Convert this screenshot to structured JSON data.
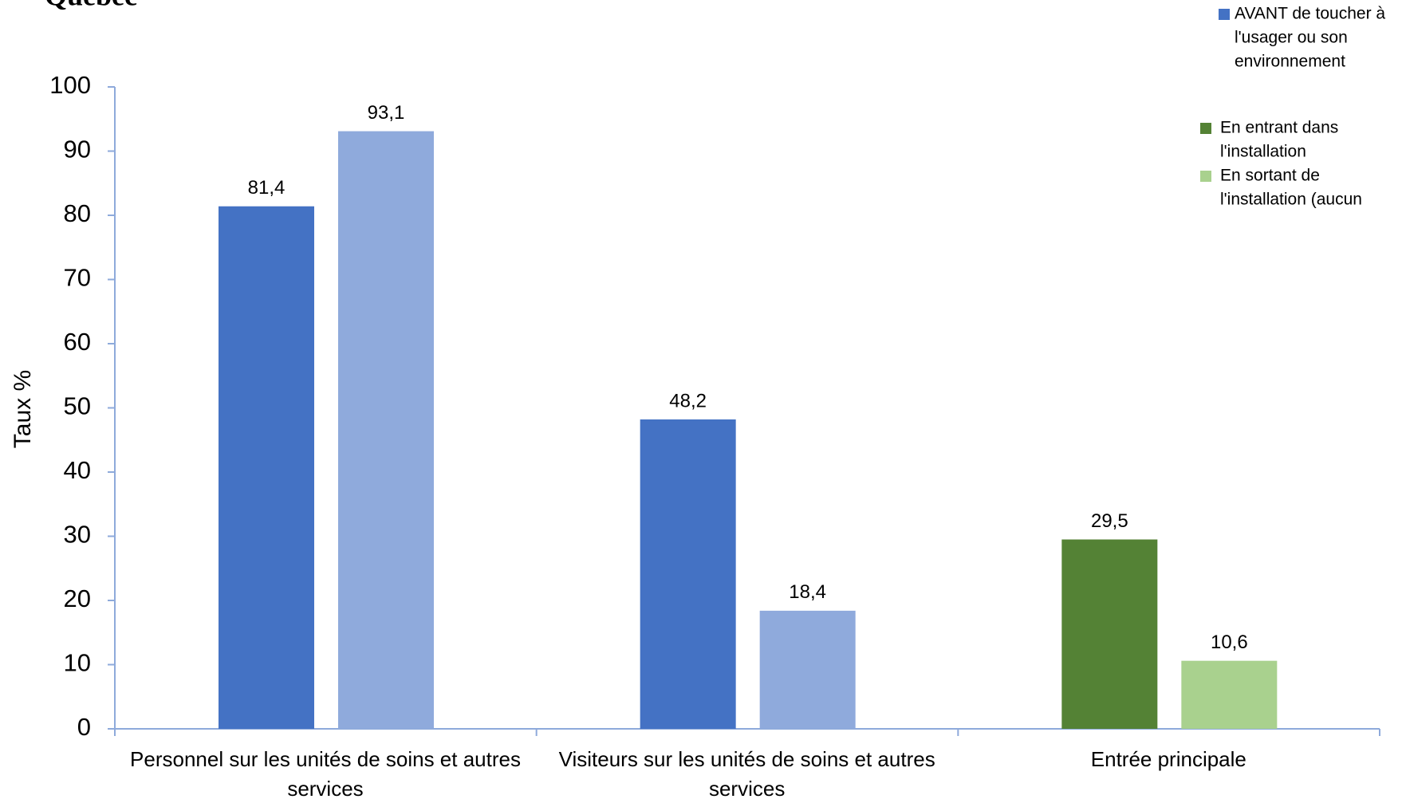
{
  "logo": "Québec",
  "chart_data": {
    "type": "bar",
    "ylabel": "Taux %",
    "categories": [
      "Personnel sur les unités de soins et autres services",
      "Visiteurs sur les unités de soins et autres services",
      "Entrée principale"
    ],
    "series": [
      {
        "colors": [
          "#4472c4",
          "#4472c4",
          "#548235"
        ],
        "values": [
          81.4,
          48.2,
          29.5
        ],
        "value_labels": [
          "81,4",
          "48,2",
          "29,5"
        ]
      },
      {
        "colors": [
          "#8faadc",
          "#8faadc",
          "#a9d18e"
        ],
        "values": [
          93.1,
          18.4,
          10.6
        ],
        "value_labels": [
          "93,1",
          "18,4",
          "10,6"
        ]
      }
    ],
    "legend": [
      {
        "color": "#4472c4",
        "lines": [
          "AVANT de toucher à",
          "l'usager ou son",
          "environnement"
        ]
      },
      {
        "color": "#548235",
        "lines": [
          "En entrant dans",
          "l'installation"
        ]
      },
      {
        "color": "#a9d18e",
        "lines": [
          "En sortant de",
          "l'installation (aucun"
        ]
      }
    ],
    "ylim": [
      0,
      100
    ],
    "yticks": [
      0,
      10,
      20,
      30,
      40,
      50,
      60,
      70,
      80,
      90,
      100
    ]
  }
}
